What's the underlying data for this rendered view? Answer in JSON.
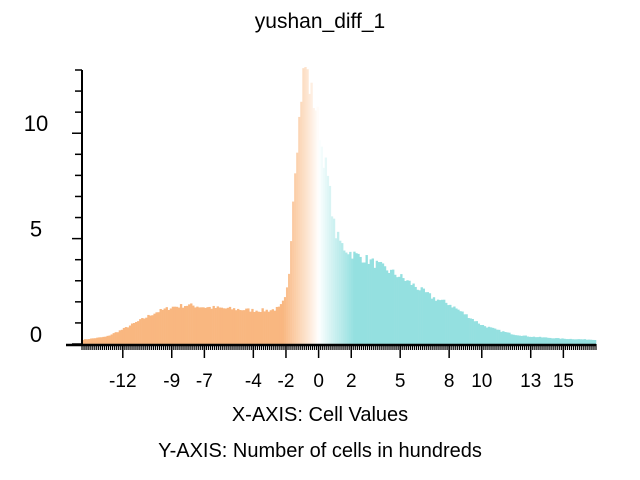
{
  "chart_data": {
    "type": "bar",
    "title": "yushan_diff_1",
    "xlabel": "X-AXIS: Cell Values",
    "ylabel": "Y-AXIS: Number of cells in hundreds",
    "xlim": [
      -14.5,
      17
    ],
    "ylim": [
      0,
      13
    ],
    "x_ticks": [
      -12,
      -9,
      -7,
      -4,
      -2,
      0,
      2,
      5,
      8,
      10,
      13,
      15
    ],
    "y_ticks": [
      0,
      5,
      10
    ],
    "y_tick_labels_drawn_at": [
      0,
      5,
      10
    ],
    "bin_width": 0.125,
    "color_scale": {
      "negative": "#f9b780",
      "zero": "#ffffff",
      "positive": "#94e0e0"
    },
    "profile_points": [
      [
        -14.5,
        0.2
      ],
      [
        -13.0,
        0.35
      ],
      [
        -12.0,
        0.7
      ],
      [
        -11.0,
        1.1
      ],
      [
        -10.0,
        1.5
      ],
      [
        -9.0,
        1.75
      ],
      [
        -8.0,
        1.85
      ],
      [
        -7.0,
        1.75
      ],
      [
        -6.0,
        1.7
      ],
      [
        -5.0,
        1.65
      ],
      [
        -4.0,
        1.6
      ],
      [
        -3.0,
        1.6
      ],
      [
        -2.4,
        1.7
      ],
      [
        -2.0,
        2.2
      ],
      [
        -1.8,
        3.5
      ],
      [
        -1.6,
        6.5
      ],
      [
        -1.4,
        9.0
      ],
      [
        -1.2,
        10.5
      ],
      [
        -1.0,
        12.5
      ],
      [
        -0.8,
        13.2
      ],
      [
        -0.5,
        12.0
      ],
      [
        -0.2,
        11.3
      ],
      [
        0.0,
        10.5
      ],
      [
        0.2,
        9.3
      ],
      [
        0.5,
        8.2
      ],
      [
        0.8,
        6.5
      ],
      [
        1.0,
        5.3
      ],
      [
        1.5,
        4.6
      ],
      [
        2.0,
        4.3
      ],
      [
        3.0,
        4.0
      ],
      [
        4.0,
        3.6
      ],
      [
        5.0,
        3.2
      ],
      [
        6.0,
        2.7
      ],
      [
        7.0,
        2.2
      ],
      [
        8.0,
        1.9
      ],
      [
        9.0,
        1.4
      ],
      [
        10.0,
        0.9
      ],
      [
        11.0,
        0.65
      ],
      [
        12.0,
        0.45
      ],
      [
        13.0,
        0.35
      ],
      [
        15.0,
        0.25
      ],
      [
        17.0,
        0.2
      ]
    ]
  }
}
